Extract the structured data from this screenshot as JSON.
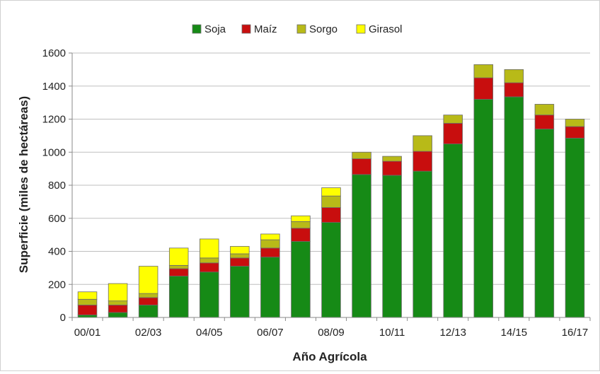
{
  "chart_data": {
    "type": "bar",
    "stacked": true,
    "title": "",
    "xlabel": "Año Agrícola",
    "ylabel": "Superficie (miles de hectáreas)",
    "ylim": [
      0,
      1600
    ],
    "yticks": [
      "0",
      "200",
      "400",
      "600",
      "800",
      "1000",
      "1200",
      "1400",
      "1600"
    ],
    "categories": [
      "00/01",
      "01/02",
      "02/03",
      "03/04",
      "04/05",
      "05/06",
      "06/07",
      "07/08",
      "08/09",
      "09/10",
      "10/11",
      "11/12",
      "12/13",
      "13/14",
      "14/15",
      "15/16",
      "16/17"
    ],
    "xtick_labels": [
      "00/01",
      "",
      "02/03",
      "",
      "04/05",
      "",
      "06/07",
      "",
      "08/09",
      "",
      "10/11",
      "",
      "12/13",
      "",
      "14/15",
      "",
      "16/17"
    ],
    "legend_position": "top",
    "gridlines": "horizontal",
    "series": [
      {
        "name": "Soja",
        "color": "#168a16",
        "values": [
          15,
          30,
          75,
          250,
          275,
          310,
          365,
          460,
          575,
          865,
          860,
          885,
          1050,
          1320,
          1335,
          1140,
          1085
        ]
      },
      {
        "name": "Maíz",
        "color": "#c80e0e",
        "values": [
          60,
          45,
          45,
          45,
          55,
          50,
          55,
          80,
          90,
          95,
          85,
          120,
          125,
          130,
          85,
          85,
          70
        ]
      },
      {
        "name": "Sorgo",
        "color": "#b8ba18",
        "values": [
          35,
          25,
          25,
          20,
          30,
          25,
          50,
          40,
          70,
          40,
          30,
          95,
          50,
          80,
          80,
          65,
          45
        ]
      },
      {
        "name": "Girasol",
        "color": "#ffff00",
        "values": [
          45,
          105,
          165,
          105,
          115,
          45,
          35,
          35,
          50,
          0,
          0,
          0,
          0,
          0,
          0,
          0,
          0
        ]
      }
    ]
  }
}
